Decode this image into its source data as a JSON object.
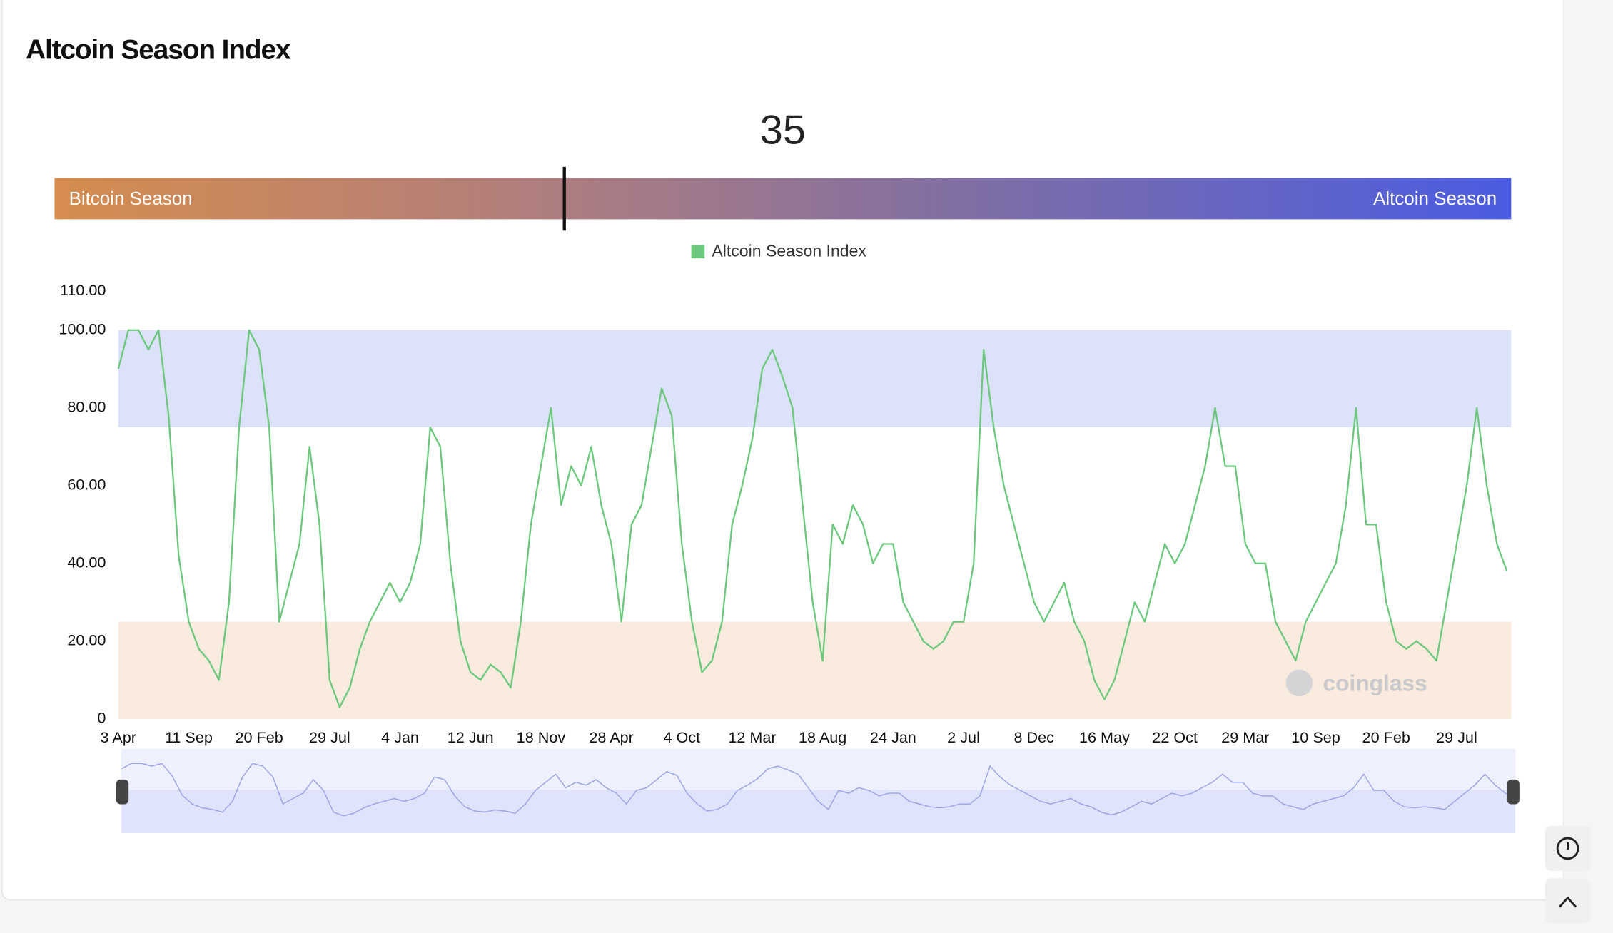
{
  "chart_data": {
    "type": "line",
    "title": "Altcoin Season Index",
    "gauge": {
      "value": 35,
      "lim": [
        0,
        100
      ],
      "left_label": "Bitcoin Season",
      "right_label": "Altcoin Season"
    },
    "legend": "top",
    "watermark": "coinglass",
    "bands": [
      {
        "from": 75,
        "to": 100,
        "color": "#dde2fb"
      },
      {
        "from": 0,
        "to": 25,
        "color": "#f9ebdd"
      }
    ],
    "ylim": [
      0,
      110
    ],
    "yticks": [
      0,
      {
        "value": 20,
        "label": "20.00"
      },
      {
        "value": 40,
        "label": "40.00"
      },
      {
        "value": 60,
        "label": "60.00"
      },
      {
        "value": 80,
        "label": "80.00"
      },
      {
        "value": 100,
        "label": "100.00"
      },
      {
        "value": 110,
        "label": "110.00"
      }
    ],
    "grid": false,
    "categories": [
      "3 Apr",
      null,
      null,
      null,
      null,
      null,
      null,
      "11 Sep",
      null,
      null,
      null,
      null,
      null,
      null,
      "20 Feb",
      null,
      null,
      null,
      null,
      null,
      null,
      "29 Jul",
      null,
      null,
      null,
      null,
      null,
      null,
      "4 Jan",
      null,
      null,
      null,
      null,
      null,
      null,
      "12 Jun",
      null,
      null,
      null,
      null,
      null,
      null,
      "18 Nov",
      null,
      null,
      null,
      null,
      null,
      null,
      "28 Apr",
      null,
      null,
      null,
      null,
      null,
      null,
      "4 Oct",
      null,
      null,
      null,
      null,
      null,
      null,
      "12 Mar",
      null,
      null,
      null,
      null,
      null,
      null,
      "18 Aug",
      null,
      null,
      null,
      null,
      null,
      null,
      "24 Jan",
      null,
      null,
      null,
      null,
      null,
      null,
      "2 Jul",
      null,
      null,
      null,
      null,
      null,
      null,
      "8 Dec",
      null,
      null,
      null,
      null,
      null,
      null,
      "16 May",
      null,
      null,
      null,
      null,
      null,
      null,
      "22 Oct",
      null,
      null,
      null,
      null,
      null,
      null,
      "29 Mar",
      null,
      null,
      null,
      null,
      null,
      null,
      "10 Sep",
      null,
      null,
      null,
      null,
      null,
      null,
      "20 Feb",
      null,
      null,
      null,
      null,
      null,
      null,
      "29 Jul",
      null,
      null,
      null,
      null,
      null
    ],
    "series": [
      {
        "name": "Altcoin Season Index",
        "color": "#6cc87c",
        "values": [
          90,
          100,
          100,
          95,
          100,
          78,
          42,
          25,
          18,
          15,
          10,
          30,
          75,
          100,
          95,
          75,
          25,
          35,
          45,
          70,
          50,
          10,
          3,
          8,
          18,
          25,
          30,
          35,
          30,
          35,
          45,
          75,
          70,
          40,
          20,
          12,
          10,
          14,
          12,
          8,
          25,
          50,
          65,
          80,
          55,
          65,
          60,
          70,
          55,
          45,
          25,
          50,
          55,
          70,
          85,
          78,
          45,
          25,
          12,
          15,
          25,
          50,
          60,
          72,
          90,
          95,
          88,
          80,
          55,
          30,
          15,
          50,
          45,
          55,
          50,
          40,
          45,
          45,
          30,
          25,
          20,
          18,
          20,
          25,
          25,
          40,
          95,
          75,
          60,
          50,
          40,
          30,
          25,
          30,
          35,
          25,
          20,
          10,
          5,
          10,
          20,
          30,
          25,
          35,
          45,
          40,
          45,
          55,
          65,
          80,
          65,
          65,
          45,
          40,
          40,
          25,
          20,
          15,
          25,
          30,
          35,
          40,
          55,
          80,
          50,
          50,
          30,
          20,
          18,
          20,
          18,
          15,
          30,
          45,
          60,
          80,
          60,
          45,
          38
        ]
      }
    ]
  }
}
